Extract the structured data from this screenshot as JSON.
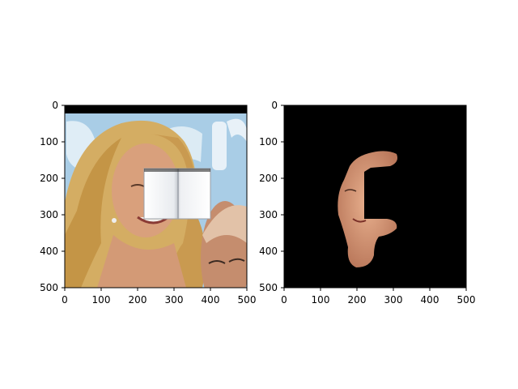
{
  "chart_data": [
    {
      "type": "image",
      "content": "photo of a smiling blonde woman with a white open book pasted over her cheek, an older bald man at the bottom right, light blue background with white lettering",
      "xlim": [
        0,
        500
      ],
      "ylim": [
        500,
        0
      ],
      "xticks": [
        "0",
        "100",
        "200",
        "300",
        "400",
        "500"
      ],
      "yticks": [
        "0",
        "100",
        "200",
        "300",
        "400",
        "500"
      ]
    },
    {
      "type": "image",
      "content": "segmentation mask: black background showing only the woman's face skin region with a cut-out where the book is",
      "xlim": [
        0,
        500
      ],
      "ylim": [
        500,
        0
      ],
      "xticks": [
        "0",
        "100",
        "200",
        "300",
        "400",
        "500"
      ],
      "yticks": [
        "0",
        "100",
        "200",
        "300",
        "400",
        "500"
      ]
    }
  ],
  "colors": {
    "sky": "#a9cde6",
    "hair": "#d9b56a",
    "skin": "#d79a78",
    "mask_bg": "#000000",
    "book": "#f4f5f7"
  }
}
